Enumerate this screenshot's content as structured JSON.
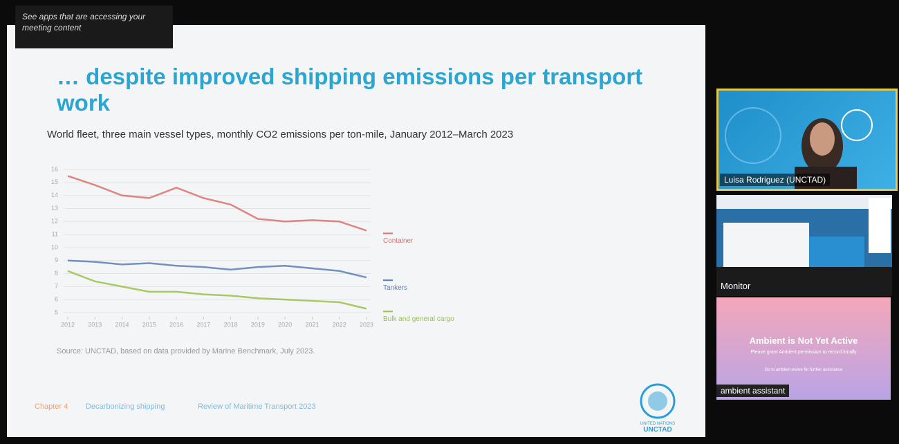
{
  "notice": "See apps that are accessing your meeting content",
  "slide_title": "… despite improved shipping emissions per transport work",
  "chart_data": {
    "type": "line",
    "title": "World fleet, three main vessel types, monthly CO2 emissions per ton-mile, January 2012–March 2023",
    "x": [
      2012,
      2013,
      2014,
      2015,
      2016,
      2017,
      2018,
      2019,
      2020,
      2021,
      2022,
      2023
    ],
    "xlim": [
      2012,
      2023
    ],
    "xticks": [
      2012,
      2013,
      2014,
      2015,
      2016,
      2017,
      2018,
      2019,
      2020,
      2021,
      2022,
      2023
    ],
    "ylim": [
      5,
      16
    ],
    "yticks": [
      5,
      6,
      7,
      8,
      9,
      10,
      11,
      12,
      13,
      14,
      15,
      16
    ],
    "grid": true,
    "series": [
      {
        "name": "Container",
        "color": "#d9706f",
        "values": [
          15.5,
          14.8,
          14.0,
          13.8,
          14.6,
          13.8,
          13.3,
          12.2,
          12.0,
          12.1,
          12.0,
          11.3
        ]
      },
      {
        "name": "Tankers",
        "color": "#5b7fb5",
        "values": [
          9.0,
          8.9,
          8.7,
          8.8,
          8.6,
          8.5,
          8.3,
          8.5,
          8.6,
          8.4,
          8.2,
          7.7
        ]
      },
      {
        "name": "Bulk and general cargo",
        "color": "#9cc04a",
        "values": [
          8.2,
          7.4,
          7.0,
          6.6,
          6.6,
          6.4,
          6.3,
          6.1,
          6.0,
          5.9,
          5.8,
          5.3
        ]
      }
    ]
  },
  "source": "Source: UNCTAD, based on data provided by Marine Benchmark, July 2023.",
  "footer": [
    "Chapter 4",
    "Decarbonizing shipping",
    "Review of Maritime Transport 2023"
  ],
  "logo": [
    "UNITED NATIONS",
    "UNCTAD"
  ],
  "tiles": {
    "speaker": "Luisa Rodriguez (UNCTAD)",
    "monitor": "Monitor",
    "ambient_title": "Ambient is Not Yet Active",
    "ambient_text": "Please grant Ambient permission to record locally",
    "ambient_help": "Go to ambient.ws/ee for further assistance",
    "ambient_name": "ambient assistant"
  }
}
